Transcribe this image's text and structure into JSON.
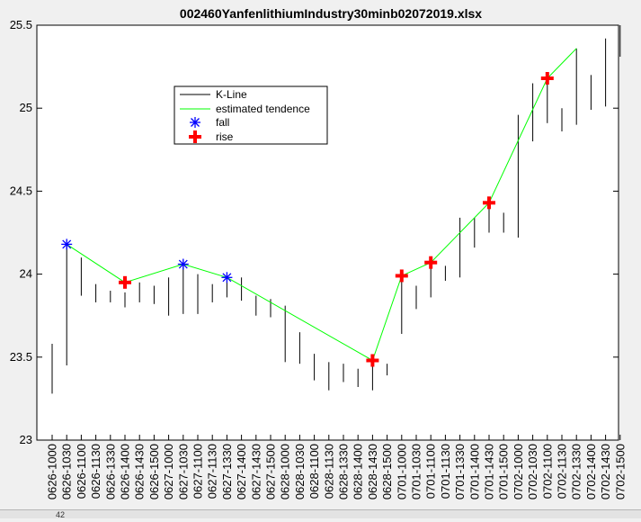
{
  "chart_data": {
    "type": "candlestick-line",
    "title": "002460YanfenlithiumIndustry30minb02072019.xlsx",
    "ylim": [
      23,
      25.5
    ],
    "yticks": [
      "23",
      "23.5",
      "24",
      "24.5",
      "25",
      "25.5"
    ],
    "categories": [
      "0626-1000",
      "0626-1030",
      "0626-1100",
      "0626-1130",
      "0626-1330",
      "0626-1400",
      "0626-1430",
      "0626-1500",
      "0627-1000",
      "0627-1030",
      "0627-1100",
      "0627-1130",
      "0627-1330",
      "0627-1400",
      "0627-1430",
      "0627-1500",
      "0628-1000",
      "0628-1030",
      "0628-1100",
      "0628-1130",
      "0628-1330",
      "0628-1400",
      "0628-1430",
      "0628-1500",
      "0701-1000",
      "0701-1030",
      "0701-1100",
      "0701-1130",
      "0701-1330",
      "0701-1400",
      "0701-1430",
      "0701-1500",
      "0702-1000",
      "0702-1030",
      "0702-1100",
      "0702-1130",
      "0702-1330",
      "0702-1400",
      "0702-1430",
      "0702-1500"
    ],
    "kline_lows": [
      23.28,
      23.45,
      23.87,
      23.83,
      23.83,
      23.8,
      23.83,
      23.82,
      23.75,
      23.76,
      23.76,
      23.83,
      23.86,
      23.84,
      23.75,
      23.74,
      23.47,
      23.46,
      23.36,
      23.3,
      23.35,
      23.32,
      23.3,
      23.39,
      23.64,
      23.79,
      23.86,
      23.96,
      23.98,
      24.16,
      24.25,
      24.25,
      24.22,
      24.8,
      24.91,
      24.86,
      24.9,
      24.99,
      25.01,
      25.31
    ],
    "kline_highs": [
      23.58,
      24.18,
      24.1,
      23.94,
      23.9,
      23.89,
      23.95,
      23.93,
      23.98,
      24.06,
      24.0,
      23.94,
      23.95,
      23.98,
      23.87,
      23.85,
      23.81,
      23.65,
      23.52,
      23.47,
      23.46,
      23.43,
      23.48,
      23.46,
      23.99,
      23.93,
      24.07,
      24.05,
      24.34,
      24.34,
      24.43,
      24.37,
      24.96,
      25.15,
      25.18,
      25.0,
      25.36,
      25.2,
      25.42,
      25.5
    ],
    "series": [
      {
        "name": "K-Line",
        "color": "#000000"
      },
      {
        "name": "estimated tendence",
        "color": "#00ff00",
        "points": [
          [
            1,
            24.18
          ],
          [
            5,
            23.95
          ],
          [
            9,
            24.06
          ],
          [
            12,
            23.98
          ],
          [
            22,
            23.48
          ],
          [
            24,
            23.99
          ],
          [
            26,
            24.07
          ],
          [
            30,
            24.43
          ],
          [
            34,
            25.18
          ],
          [
            36,
            25.36
          ]
        ]
      },
      {
        "name": "fall",
        "color": "#0000ff",
        "marker": "asterisk",
        "points": [
          [
            1,
            24.18
          ],
          [
            9,
            24.06
          ],
          [
            12,
            23.98
          ]
        ]
      },
      {
        "name": "rise",
        "color": "#ff0000",
        "marker": "plus",
        "points": [
          [
            5,
            23.95
          ],
          [
            22,
            23.48
          ],
          [
            24,
            23.99
          ],
          [
            26,
            24.07
          ],
          [
            30,
            24.43
          ],
          [
            34,
            25.18
          ]
        ]
      }
    ],
    "legend_position": "upper-left",
    "grid": false
  },
  "strip_label": "42"
}
